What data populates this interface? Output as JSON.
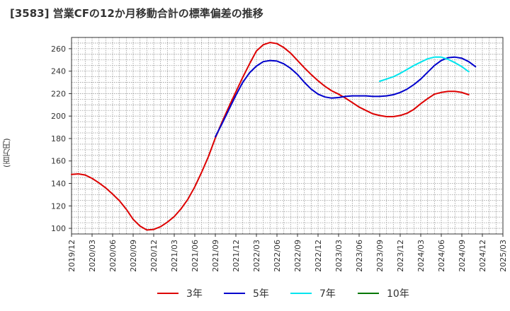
{
  "chart_data": {
    "type": "line",
    "title": "[3583]  営業CFの12か月移動合計の標準偏差の推移",
    "ylabel": "(百万円)",
    "xlabel": "",
    "ylim": [
      95,
      270
    ],
    "yticks": [
      100,
      120,
      140,
      160,
      180,
      200,
      220,
      240,
      260
    ],
    "xticks": [
      "2019/12",
      "2020/03",
      "2020/06",
      "2020/09",
      "2020/12",
      "2021/03",
      "2021/06",
      "2021/09",
      "2021/12",
      "2022/03",
      "2022/06",
      "2022/09",
      "2022/12",
      "2023/03",
      "2023/06",
      "2023/09",
      "2023/12",
      "2024/03",
      "2024/06",
      "2024/09",
      "2024/12",
      "2025/03"
    ],
    "grid": true,
    "legend_position": "bottom",
    "series": [
      {
        "name": "3年",
        "color": "#dd0000",
        "start_index": 0,
        "values": [
          148,
          148.5,
          147.5,
          144.5,
          140.5,
          136,
          130.5,
          124.5,
          117,
          108,
          102,
          98.5,
          99,
          101.5,
          105.5,
          110.5,
          117.5,
          126,
          137,
          150,
          164,
          180.5,
          195,
          208.5,
          221.5,
          234.5,
          246.5,
          258,
          263.5,
          265.5,
          264.5,
          261,
          256,
          249.5,
          243,
          237,
          231.5,
          226.5,
          222.5,
          219.5,
          216,
          212,
          208,
          205,
          202,
          200.5,
          199.5,
          199.5,
          200.5,
          202.5,
          206,
          211,
          215.5,
          219.5,
          221,
          222,
          222,
          221,
          219
        ]
      },
      {
        "name": "5年",
        "color": "#0000cc",
        "start_index": 21,
        "values": [
          181.5,
          193.5,
          206,
          218.5,
          230,
          238.5,
          244.5,
          248.5,
          249.5,
          249,
          246.5,
          242.5,
          237,
          230,
          224,
          219.5,
          217,
          216,
          216.5,
          217.5,
          218,
          218,
          218,
          217.5,
          217.5,
          218,
          219,
          221,
          224,
          228,
          233,
          239,
          245,
          249.5,
          252,
          252.5,
          251.5,
          248.5,
          244
        ]
      },
      {
        "name": "7年",
        "color": "#00e5ee",
        "start_index": 45,
        "values": [
          231,
          233,
          235,
          238,
          241.5,
          245,
          248,
          251,
          252.5,
          252.5,
          250.5,
          247.5,
          244,
          239.5
        ]
      },
      {
        "name": "10年",
        "color": "#007700",
        "start_index": 0,
        "values": []
      }
    ]
  }
}
